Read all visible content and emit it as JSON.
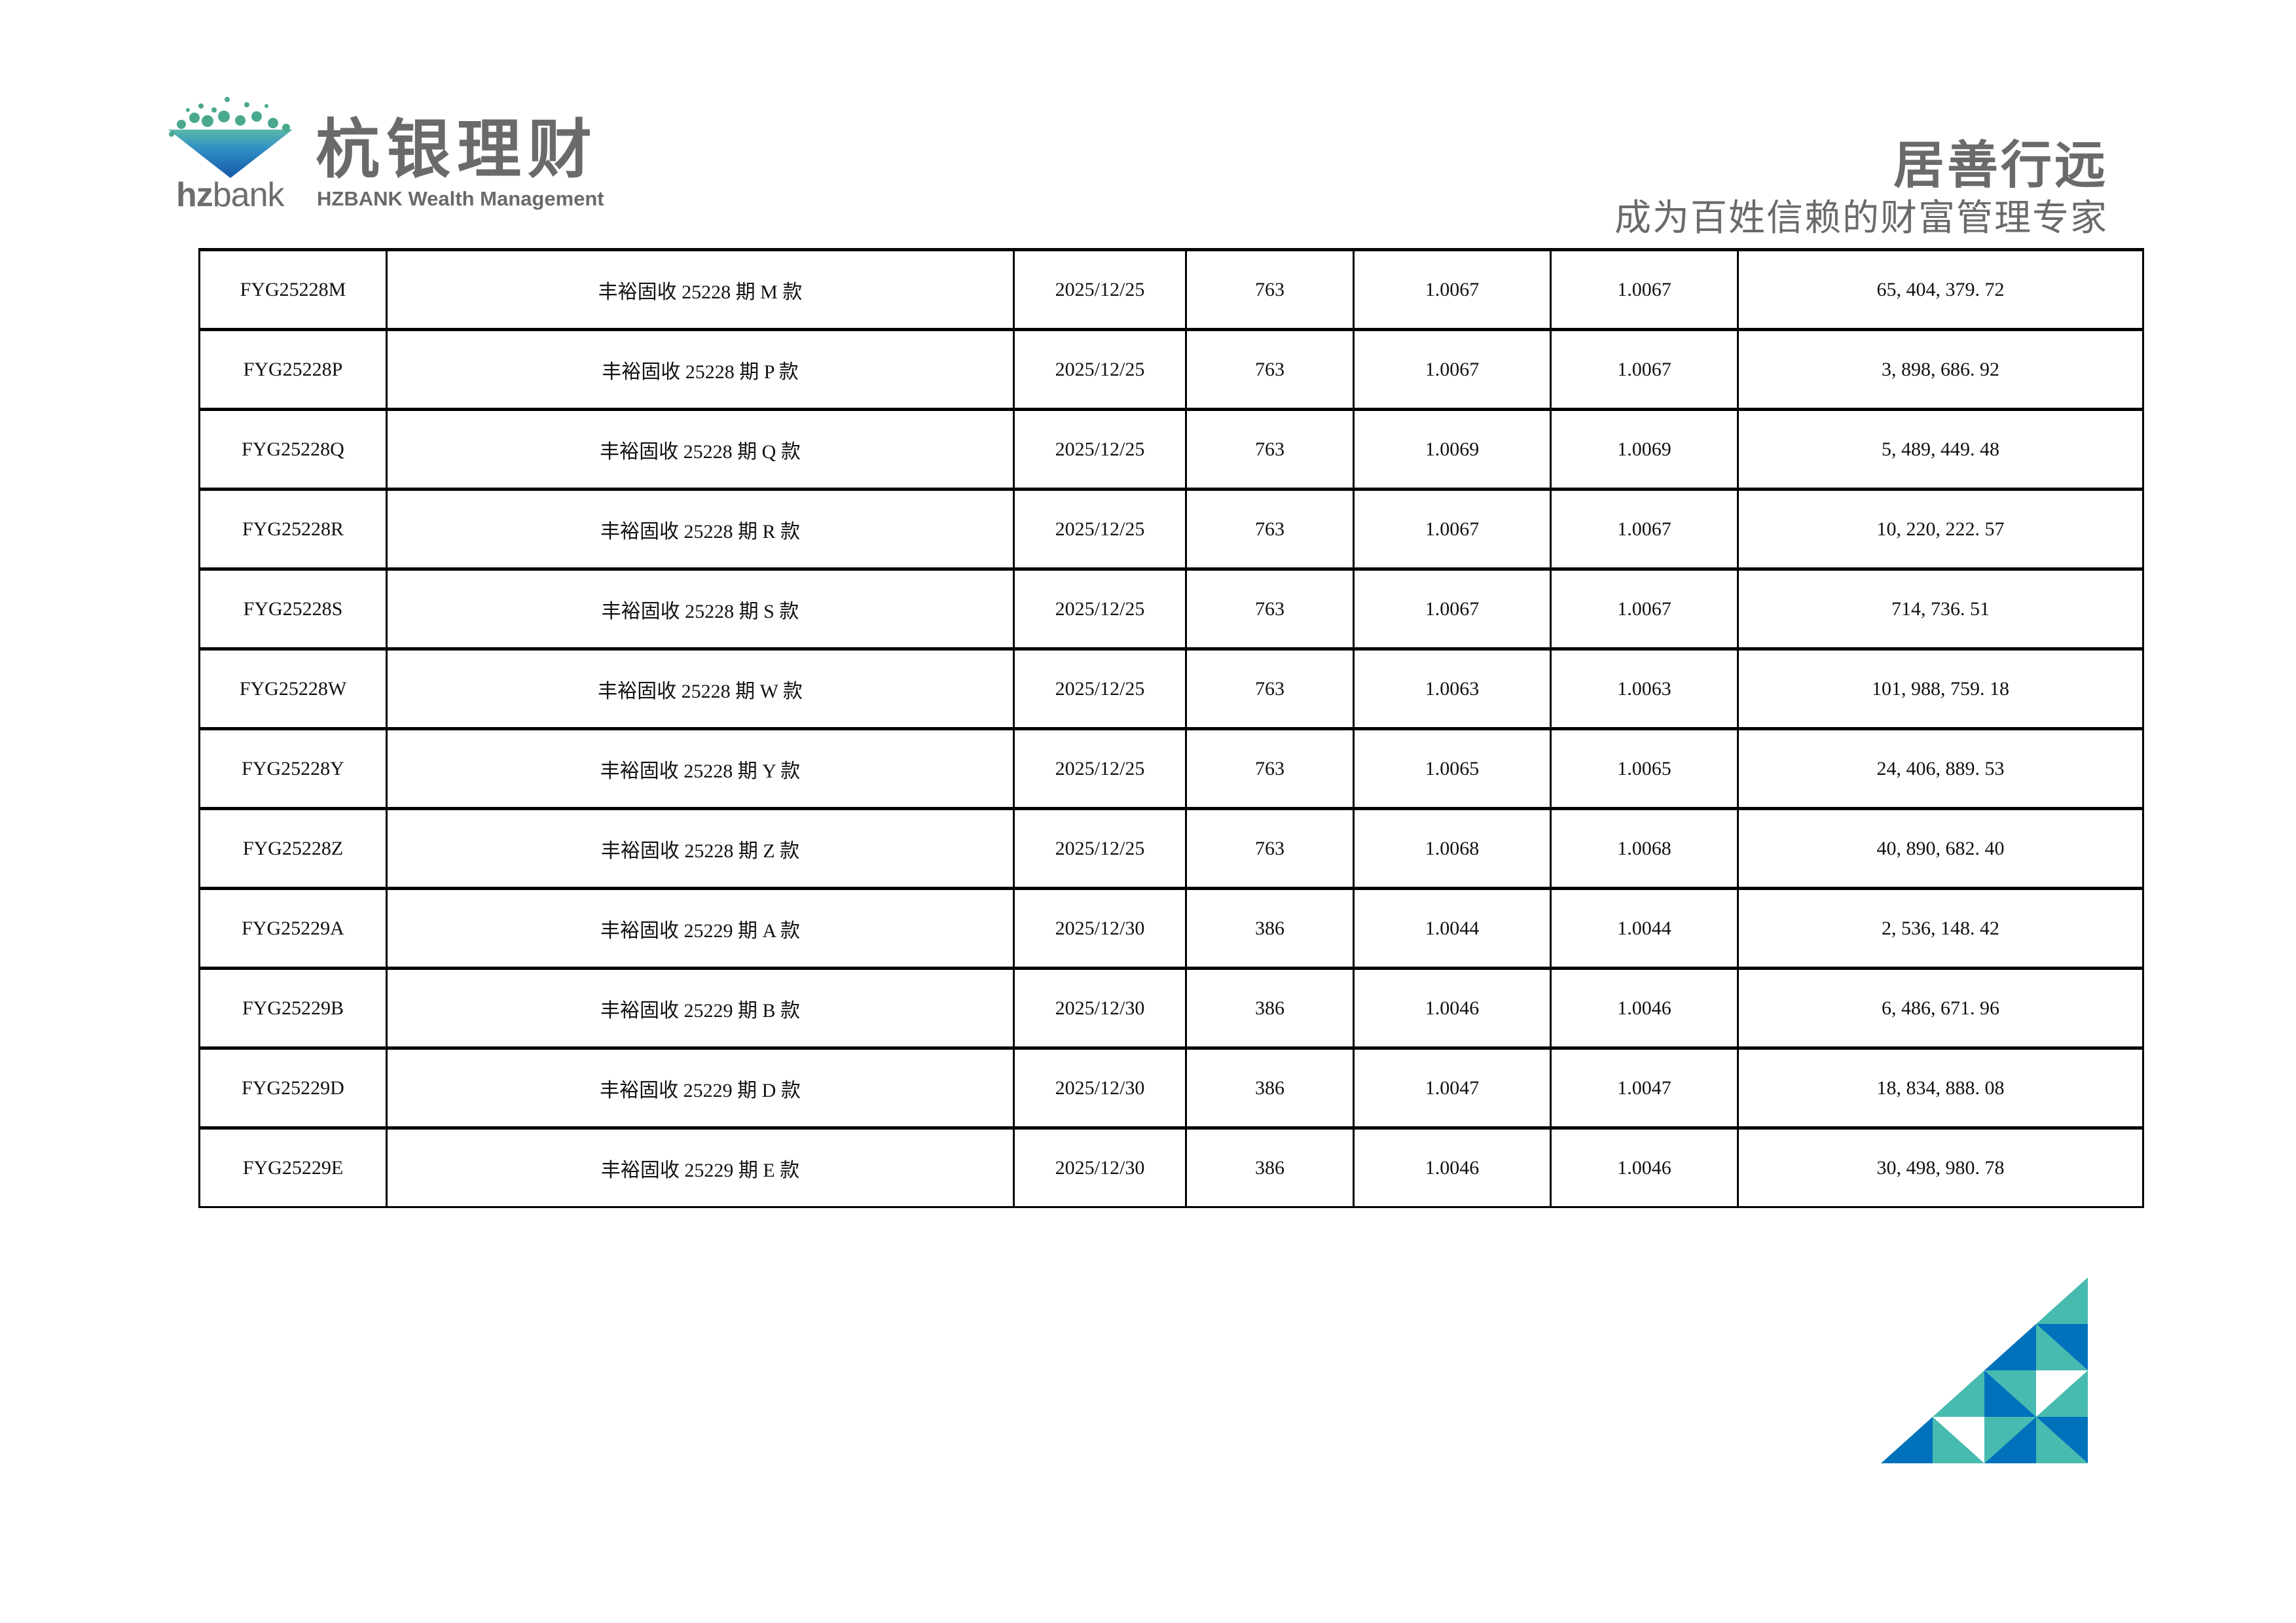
{
  "header": {
    "logo_cn": "杭银理财",
    "logo_en": "HZBANK Wealth Management",
    "logo_hz": "hz",
    "logo_bank": "bank",
    "slogan_title": "居善行远",
    "slogan_sub": "成为百姓信赖的财富管理专家"
  },
  "colors": {
    "brand_blue": "#0072bc",
    "brand_teal": "#48bbb0",
    "text_gray": "#6a6a6a"
  },
  "table": {
    "rows": [
      [
        "FYG25228M",
        "丰裕固收 25228 期 M 款",
        "2025/12/25",
        "763",
        "1.0067",
        "1.0067",
        "65, 404, 379. 72"
      ],
      [
        "FYG25228P",
        "丰裕固收 25228 期 P 款",
        "2025/12/25",
        "763",
        "1.0067",
        "1.0067",
        "3, 898, 686. 92"
      ],
      [
        "FYG25228Q",
        "丰裕固收 25228 期 Q 款",
        "2025/12/25",
        "763",
        "1.0069",
        "1.0069",
        "5, 489, 449. 48"
      ],
      [
        "FYG25228R",
        "丰裕固收 25228 期 R 款",
        "2025/12/25",
        "763",
        "1.0067",
        "1.0067",
        "10, 220, 222. 57"
      ],
      [
        "FYG25228S",
        "丰裕固收 25228 期 S 款",
        "2025/12/25",
        "763",
        "1.0067",
        "1.0067",
        "714, 736. 51"
      ],
      [
        "FYG25228W",
        "丰裕固收 25228 期 W 款",
        "2025/12/25",
        "763",
        "1.0063",
        "1.0063",
        "101, 988, 759. 18"
      ],
      [
        "FYG25228Y",
        "丰裕固收 25228 期 Y 款",
        "2025/12/25",
        "763",
        "1.0065",
        "1.0065",
        "24, 406, 889. 53"
      ],
      [
        "FYG25228Z",
        "丰裕固收 25228 期 Z 款",
        "2025/12/25",
        "763",
        "1.0068",
        "1.0068",
        "40, 890, 682. 40"
      ],
      [
        "FYG25229A",
        "丰裕固收 25229 期 A 款",
        "2025/12/30",
        "386",
        "1.0044",
        "1.0044",
        "2, 536, 148. 42"
      ],
      [
        "FYG25229B",
        "丰裕固收 25229 期 B 款",
        "2025/12/30",
        "386",
        "1.0046",
        "1.0046",
        "6, 486, 671. 96"
      ],
      [
        "FYG25229D",
        "丰裕固收 25229 期 D 款",
        "2025/12/30",
        "386",
        "1.0047",
        "1.0047",
        "18, 834, 888. 08"
      ],
      [
        "FYG25229E",
        "丰裕固收 25229 期 E 款",
        "2025/12/30",
        "386",
        "1.0046",
        "1.0046",
        "30, 498, 980. 78"
      ]
    ]
  }
}
